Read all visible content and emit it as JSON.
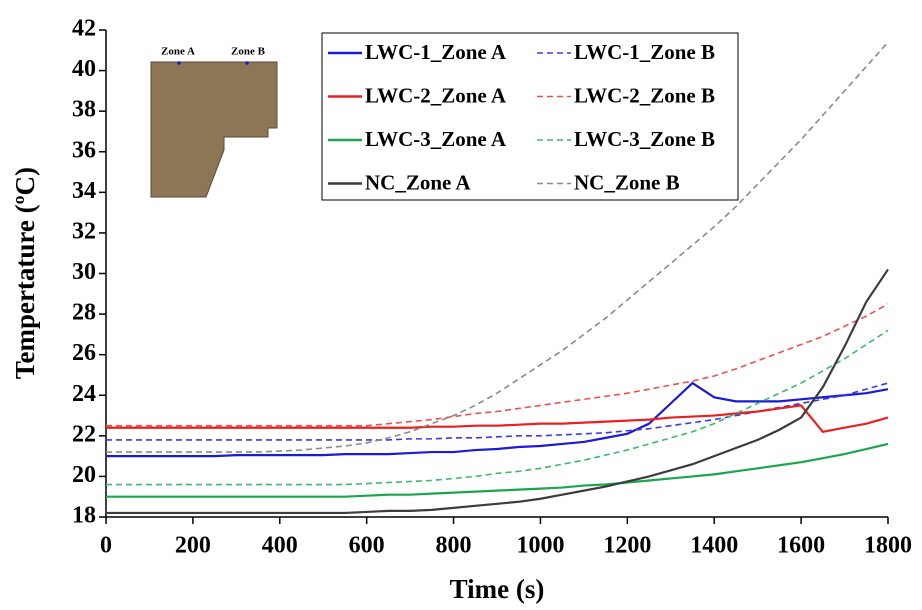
{
  "chart_data": {
    "type": "line",
    "xlabel": "Time (s)",
    "ylabel": "Tempertature (ºC)",
    "xlim": [
      0,
      1800
    ],
    "xticks": [
      0,
      200,
      400,
      600,
      800,
      1000,
      1200,
      1400,
      1600,
      1800
    ],
    "ylim": [
      18,
      42
    ],
    "yticks": [
      18,
      20,
      22,
      24,
      26,
      28,
      30,
      32,
      34,
      36,
      38,
      40,
      42
    ],
    "grid": false,
    "legend": "upper center",
    "inset_labels": [
      "Zone A",
      "Zone B"
    ],
    "x": [
      0,
      50,
      100,
      150,
      200,
      250,
      300,
      350,
      400,
      450,
      500,
      550,
      600,
      650,
      700,
      750,
      800,
      850,
      900,
      950,
      1000,
      1050,
      1100,
      1150,
      1200,
      1250,
      1300,
      1350,
      1400,
      1450,
      1500,
      1550,
      1600,
      1650,
      1700,
      1750,
      1800
    ],
    "series": [
      {
        "name": "LWC-1_Zone A",
        "color": "#1a1ad8",
        "line_style": "solid",
        "values": [
          21.0,
          21.0,
          21.0,
          21.0,
          21.0,
          21.0,
          21.05,
          21.05,
          21.05,
          21.05,
          21.05,
          21.1,
          21.1,
          21.1,
          21.15,
          21.2,
          21.2,
          21.3,
          21.35,
          21.45,
          21.5,
          21.6,
          21.7,
          21.9,
          22.1,
          22.6,
          23.6,
          24.6,
          23.9,
          23.7,
          23.7,
          23.7,
          23.8,
          23.9,
          24.0,
          24.1,
          24.3
        ]
      },
      {
        "name": "LWC-1_Zone B",
        "color": "#3a3ae0",
        "line_style": "dashed",
        "values": [
          21.8,
          21.8,
          21.8,
          21.8,
          21.8,
          21.8,
          21.8,
          21.8,
          21.8,
          21.8,
          21.8,
          21.8,
          21.8,
          21.8,
          21.85,
          21.85,
          21.9,
          21.9,
          21.95,
          22.0,
          22.0,
          22.05,
          22.1,
          22.15,
          22.25,
          22.35,
          22.5,
          22.65,
          22.8,
          23.0,
          23.2,
          23.4,
          23.6,
          23.8,
          24.0,
          24.3,
          24.6
        ]
      },
      {
        "name": "LWC-2_Zone A",
        "color": "#e8201f",
        "line_style": "solid",
        "values": [
          22.4,
          22.4,
          22.4,
          22.4,
          22.4,
          22.4,
          22.4,
          22.4,
          22.4,
          22.4,
          22.4,
          22.4,
          22.4,
          22.4,
          22.4,
          22.45,
          22.45,
          22.5,
          22.5,
          22.55,
          22.6,
          22.6,
          22.65,
          22.7,
          22.75,
          22.8,
          22.9,
          22.95,
          23.0,
          23.1,
          23.2,
          23.35,
          23.5,
          22.2,
          22.4,
          22.6,
          22.9
        ]
      },
      {
        "name": "LWC-2_Zone B",
        "color": "#ee5050",
        "line_style": "dashed",
        "values": [
          22.5,
          22.5,
          22.5,
          22.5,
          22.5,
          22.5,
          22.5,
          22.5,
          22.5,
          22.5,
          22.5,
          22.5,
          22.5,
          22.6,
          22.7,
          22.8,
          22.95,
          23.1,
          23.2,
          23.35,
          23.5,
          23.65,
          23.8,
          23.95,
          24.1,
          24.3,
          24.5,
          24.7,
          24.95,
          25.3,
          25.7,
          26.1,
          26.5,
          26.9,
          27.4,
          27.9,
          28.5
        ]
      },
      {
        "name": "LWC-3_Zone A",
        "color": "#1aa64e",
        "line_style": "solid",
        "values": [
          19.0,
          19.0,
          19.0,
          19.0,
          19.0,
          19.0,
          19.0,
          19.0,
          19.0,
          19.0,
          19.0,
          19.0,
          19.05,
          19.1,
          19.1,
          19.15,
          19.2,
          19.25,
          19.3,
          19.35,
          19.4,
          19.45,
          19.55,
          19.6,
          19.7,
          19.8,
          19.9,
          20.0,
          20.1,
          20.25,
          20.4,
          20.55,
          20.7,
          20.9,
          21.1,
          21.35,
          21.6
        ]
      },
      {
        "name": "LWC-3_Zone B",
        "color": "#3cba6a",
        "line_style": "dashed",
        "values": [
          19.6,
          19.6,
          19.6,
          19.6,
          19.6,
          19.6,
          19.6,
          19.6,
          19.6,
          19.6,
          19.6,
          19.6,
          19.65,
          19.7,
          19.75,
          19.8,
          19.9,
          20.0,
          20.15,
          20.25,
          20.4,
          20.6,
          20.8,
          21.05,
          21.3,
          21.6,
          21.9,
          22.2,
          22.6,
          23.1,
          23.6,
          24.1,
          24.6,
          25.2,
          25.8,
          26.5,
          27.2
        ]
      },
      {
        "name": "NC_Zone A",
        "color": "#3c3c3c",
        "line_style": "solid",
        "values": [
          18.2,
          18.2,
          18.2,
          18.2,
          18.2,
          18.2,
          18.2,
          18.2,
          18.2,
          18.2,
          18.2,
          18.2,
          18.25,
          18.3,
          18.3,
          18.35,
          18.45,
          18.55,
          18.65,
          18.75,
          18.9,
          19.1,
          19.3,
          19.5,
          19.75,
          20.0,
          20.3,
          20.6,
          21.0,
          21.4,
          21.8,
          22.3,
          22.9,
          24.4,
          26.4,
          28.6,
          30.2
        ]
      },
      {
        "name": "NC_Zone B",
        "color": "#8a8a8a",
        "line_style": "dashed",
        "values": [
          21.2,
          21.2,
          21.2,
          21.2,
          21.2,
          21.2,
          21.2,
          21.2,
          21.25,
          21.3,
          21.4,
          21.5,
          21.65,
          21.9,
          22.2,
          22.6,
          23.0,
          23.5,
          24.1,
          24.8,
          25.5,
          26.2,
          27.0,
          27.8,
          28.7,
          29.6,
          30.5,
          31.4,
          32.3,
          33.3,
          34.4,
          35.5,
          36.6,
          37.8,
          39.0,
          40.2,
          41.4
        ]
      }
    ]
  }
}
